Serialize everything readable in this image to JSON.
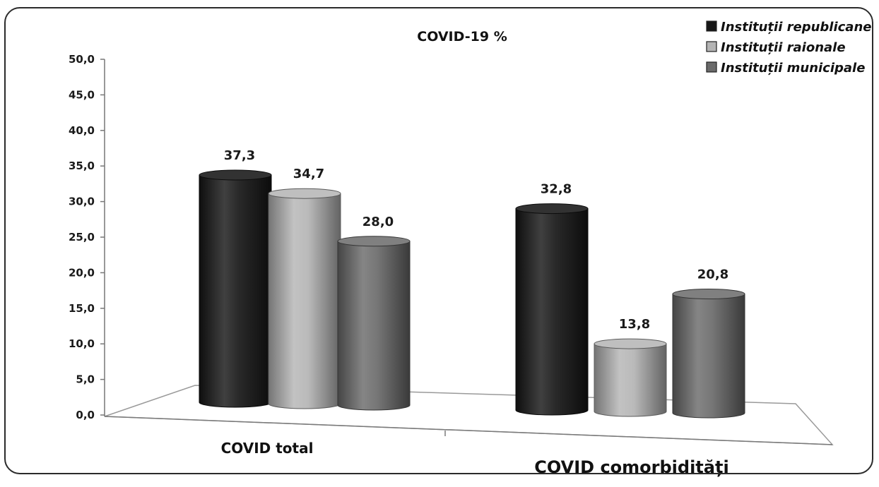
{
  "chart_data": {
    "type": "bar",
    "title": "COVID-19 %",
    "categories": [
      "COVID total",
      "COVID comorbidități"
    ],
    "series": [
      {
        "name": "Instituții republicane",
        "values": [
          37.3,
          32.8
        ],
        "color": "#161616"
      },
      {
        "name": "Instituții raionale",
        "values": [
          34.7,
          13.8
        ],
        "color": "#b4b4b4"
      },
      {
        "name": "Instituții municipale",
        "values": [
          28.0,
          20.8
        ],
        "color": "#6a6a6a"
      }
    ],
    "data_labels": [
      [
        "37,3",
        "32,8"
      ],
      [
        "34,7",
        "13,8"
      ],
      [
        "28,0",
        "20,8"
      ]
    ],
    "y_ticks": [
      "0,0",
      "5,0",
      "10,0",
      "15,0",
      "20,0",
      "25,0",
      "30,0",
      "35,0",
      "40,0",
      "45,0",
      "50,0"
    ],
    "ylim": [
      0,
      50
    ],
    "xlabel": "",
    "ylabel": "",
    "grid": false,
    "legend_position": "top-right",
    "style": "3d-cylinder"
  }
}
